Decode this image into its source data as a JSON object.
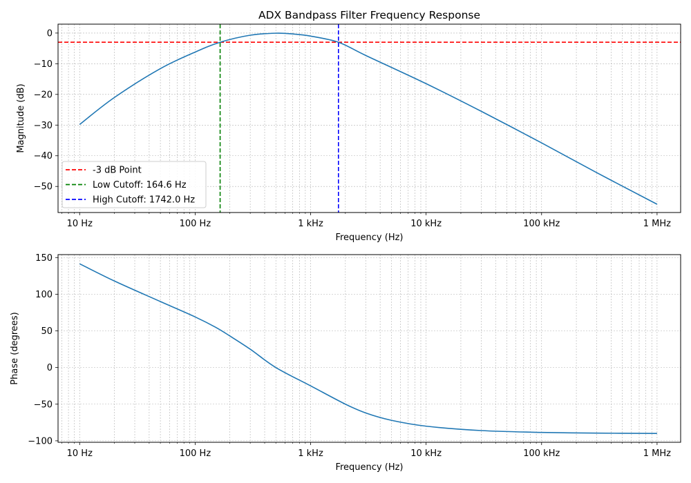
{
  "chart_data": [
    {
      "type": "line",
      "title": "ADX Bandpass Filter Frequency Response",
      "xlabel": "Frequency (Hz)",
      "ylabel": "Magnitude (dB)",
      "xscale": "log",
      "xlim": [
        6.5,
        1600000
      ],
      "ylim": [
        -58.5,
        2.9
      ],
      "xticks": [
        {
          "value": 10,
          "label": "10 Hz"
        },
        {
          "value": 100,
          "label": "100 Hz"
        },
        {
          "value": 1000,
          "label": "1 kHz"
        },
        {
          "value": 10000,
          "label": "10 kHz"
        },
        {
          "value": 100000,
          "label": "100 kHz"
        },
        {
          "value": 1000000,
          "label": "1 MHz"
        }
      ],
      "yticks": [
        {
          "value": 0,
          "label": "0"
        },
        {
          "value": -10,
          "label": "−10"
        },
        {
          "value": -20,
          "label": "−20"
        },
        {
          "value": -30,
          "label": "−30"
        },
        {
          "value": -40,
          "label": "−40"
        },
        {
          "value": -50,
          "label": "−50"
        }
      ],
      "grid": true,
      "legend_position": "lower-left",
      "series": [
        {
          "color": "#1f77b4",
          "x": [
            10,
            20,
            50,
            100,
            164.6,
            300,
            500,
            700,
            1000,
            1742,
            3000,
            10000,
            30000,
            100000,
            300000,
            1000000
          ],
          "y": [
            -29.8,
            -21,
            -11.6,
            -6.2,
            -3,
            -0.7,
            -0.05,
            -0.3,
            -1,
            -3,
            -7.3,
            -16.5,
            -25.5,
            -35.8,
            -45.5,
            -55.8
          ]
        }
      ],
      "reference_lines": [
        {
          "orientation": "horizontal",
          "value": -3,
          "color": "#ff0000",
          "style": "dashed",
          "label": "-3 dB Point"
        },
        {
          "orientation": "vertical",
          "value": 164.6,
          "color": "#008000",
          "style": "dashed",
          "label": "Low Cutoff: 164.6 Hz"
        },
        {
          "orientation": "vertical",
          "value": 1742.0,
          "color": "#0000ff",
          "style": "dashed",
          "label": "High Cutoff: 1742.0 Hz"
        }
      ]
    },
    {
      "type": "line",
      "title": "",
      "xlabel": "Frequency (Hz)",
      "ylabel": "Phase (degrees)",
      "xscale": "log",
      "xlim": [
        6.5,
        1600000
      ],
      "ylim": [
        -102,
        154
      ],
      "xticks": [
        {
          "value": 10,
          "label": "10 Hz"
        },
        {
          "value": 100,
          "label": "100 Hz"
        },
        {
          "value": 1000,
          "label": "1 kHz"
        },
        {
          "value": 10000,
          "label": "10 kHz"
        },
        {
          "value": 100000,
          "label": "100 kHz"
        },
        {
          "value": 1000000,
          "label": "1 MHz"
        }
      ],
      "yticks": [
        {
          "value": 150,
          "label": "150"
        },
        {
          "value": 100,
          "label": "100"
        },
        {
          "value": 50,
          "label": "50"
        },
        {
          "value": 0,
          "label": "0"
        },
        {
          "value": -50,
          "label": "−50"
        },
        {
          "value": -100,
          "label": "−100"
        }
      ],
      "grid": true,
      "series": [
        {
          "color": "#1f77b4",
          "x": [
            10,
            20,
            50,
            100,
            150,
            200,
            300,
            500,
            1000,
            2000,
            3000,
            5000,
            10000,
            30000,
            100000,
            300000,
            1000000
          ],
          "y": [
            141.5,
            118,
            90,
            69,
            55,
            43,
            25,
            0,
            -25,
            -50,
            -62,
            -72,
            -80,
            -86,
            -88.5,
            -89.5,
            -89.9
          ]
        }
      ]
    }
  ]
}
